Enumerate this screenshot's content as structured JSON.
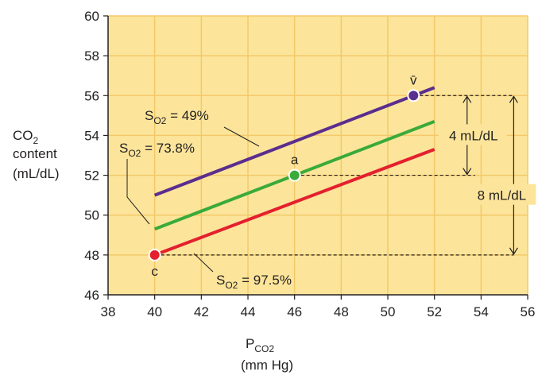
{
  "chart_data": {
    "type": "line",
    "xlim": [
      38,
      56
    ],
    "ylim": [
      46,
      60
    ],
    "x_ticks": [
      38,
      40,
      42,
      44,
      46,
      48,
      50,
      52,
      54,
      56
    ],
    "y_ticks": [
      46,
      48,
      50,
      52,
      54,
      56,
      58,
      60
    ],
    "xlabel": {
      "main": "P",
      "sub": "CO2",
      "units": "(mm Hg)"
    },
    "ylabel": {
      "line1_main": "CO",
      "line1_sub": "2",
      "line2": "content",
      "line3": "(mL/dL)"
    },
    "background": "#fce59a",
    "grid": true,
    "grid_color": "#f3c96a",
    "series": [
      {
        "name": "SO2 = 49%",
        "label_main": "S",
        "label_sub": "O2",
        "label_value": " = 49%",
        "color": "#5b2d8e",
        "x": [
          40,
          52
        ],
        "y": [
          51.0,
          56.4
        ]
      },
      {
        "name": "SO2 = 73.8%",
        "label_main": "S",
        "label_sub": "O2",
        "label_value": " = 73.8%",
        "color": "#3aaa3a",
        "x": [
          40,
          52
        ],
        "y": [
          49.3,
          54.7
        ]
      },
      {
        "name": "SO2 = 97.5%",
        "label_main": "S",
        "label_sub": "O2",
        "label_value": " = 97.5%",
        "color": "#e4202e",
        "x": [
          40,
          52
        ],
        "y": [
          48.0,
          53.3
        ]
      }
    ],
    "points": [
      {
        "label": "v̄",
        "x": 51.1,
        "y": 56.0,
        "color": "#5b2d8e"
      },
      {
        "label": "a",
        "x": 46.0,
        "y": 52.0,
        "color": "#3aaa3a"
      },
      {
        "label": "c",
        "x": 40.0,
        "y": 48.0,
        "color": "#e4202e"
      }
    ],
    "annotations": [
      {
        "text": "4 mL/dL",
        "from": 52.0,
        "to": 56.0
      },
      {
        "text": "8 mL/dL",
        "from": 48.0,
        "to": 56.0
      }
    ]
  }
}
